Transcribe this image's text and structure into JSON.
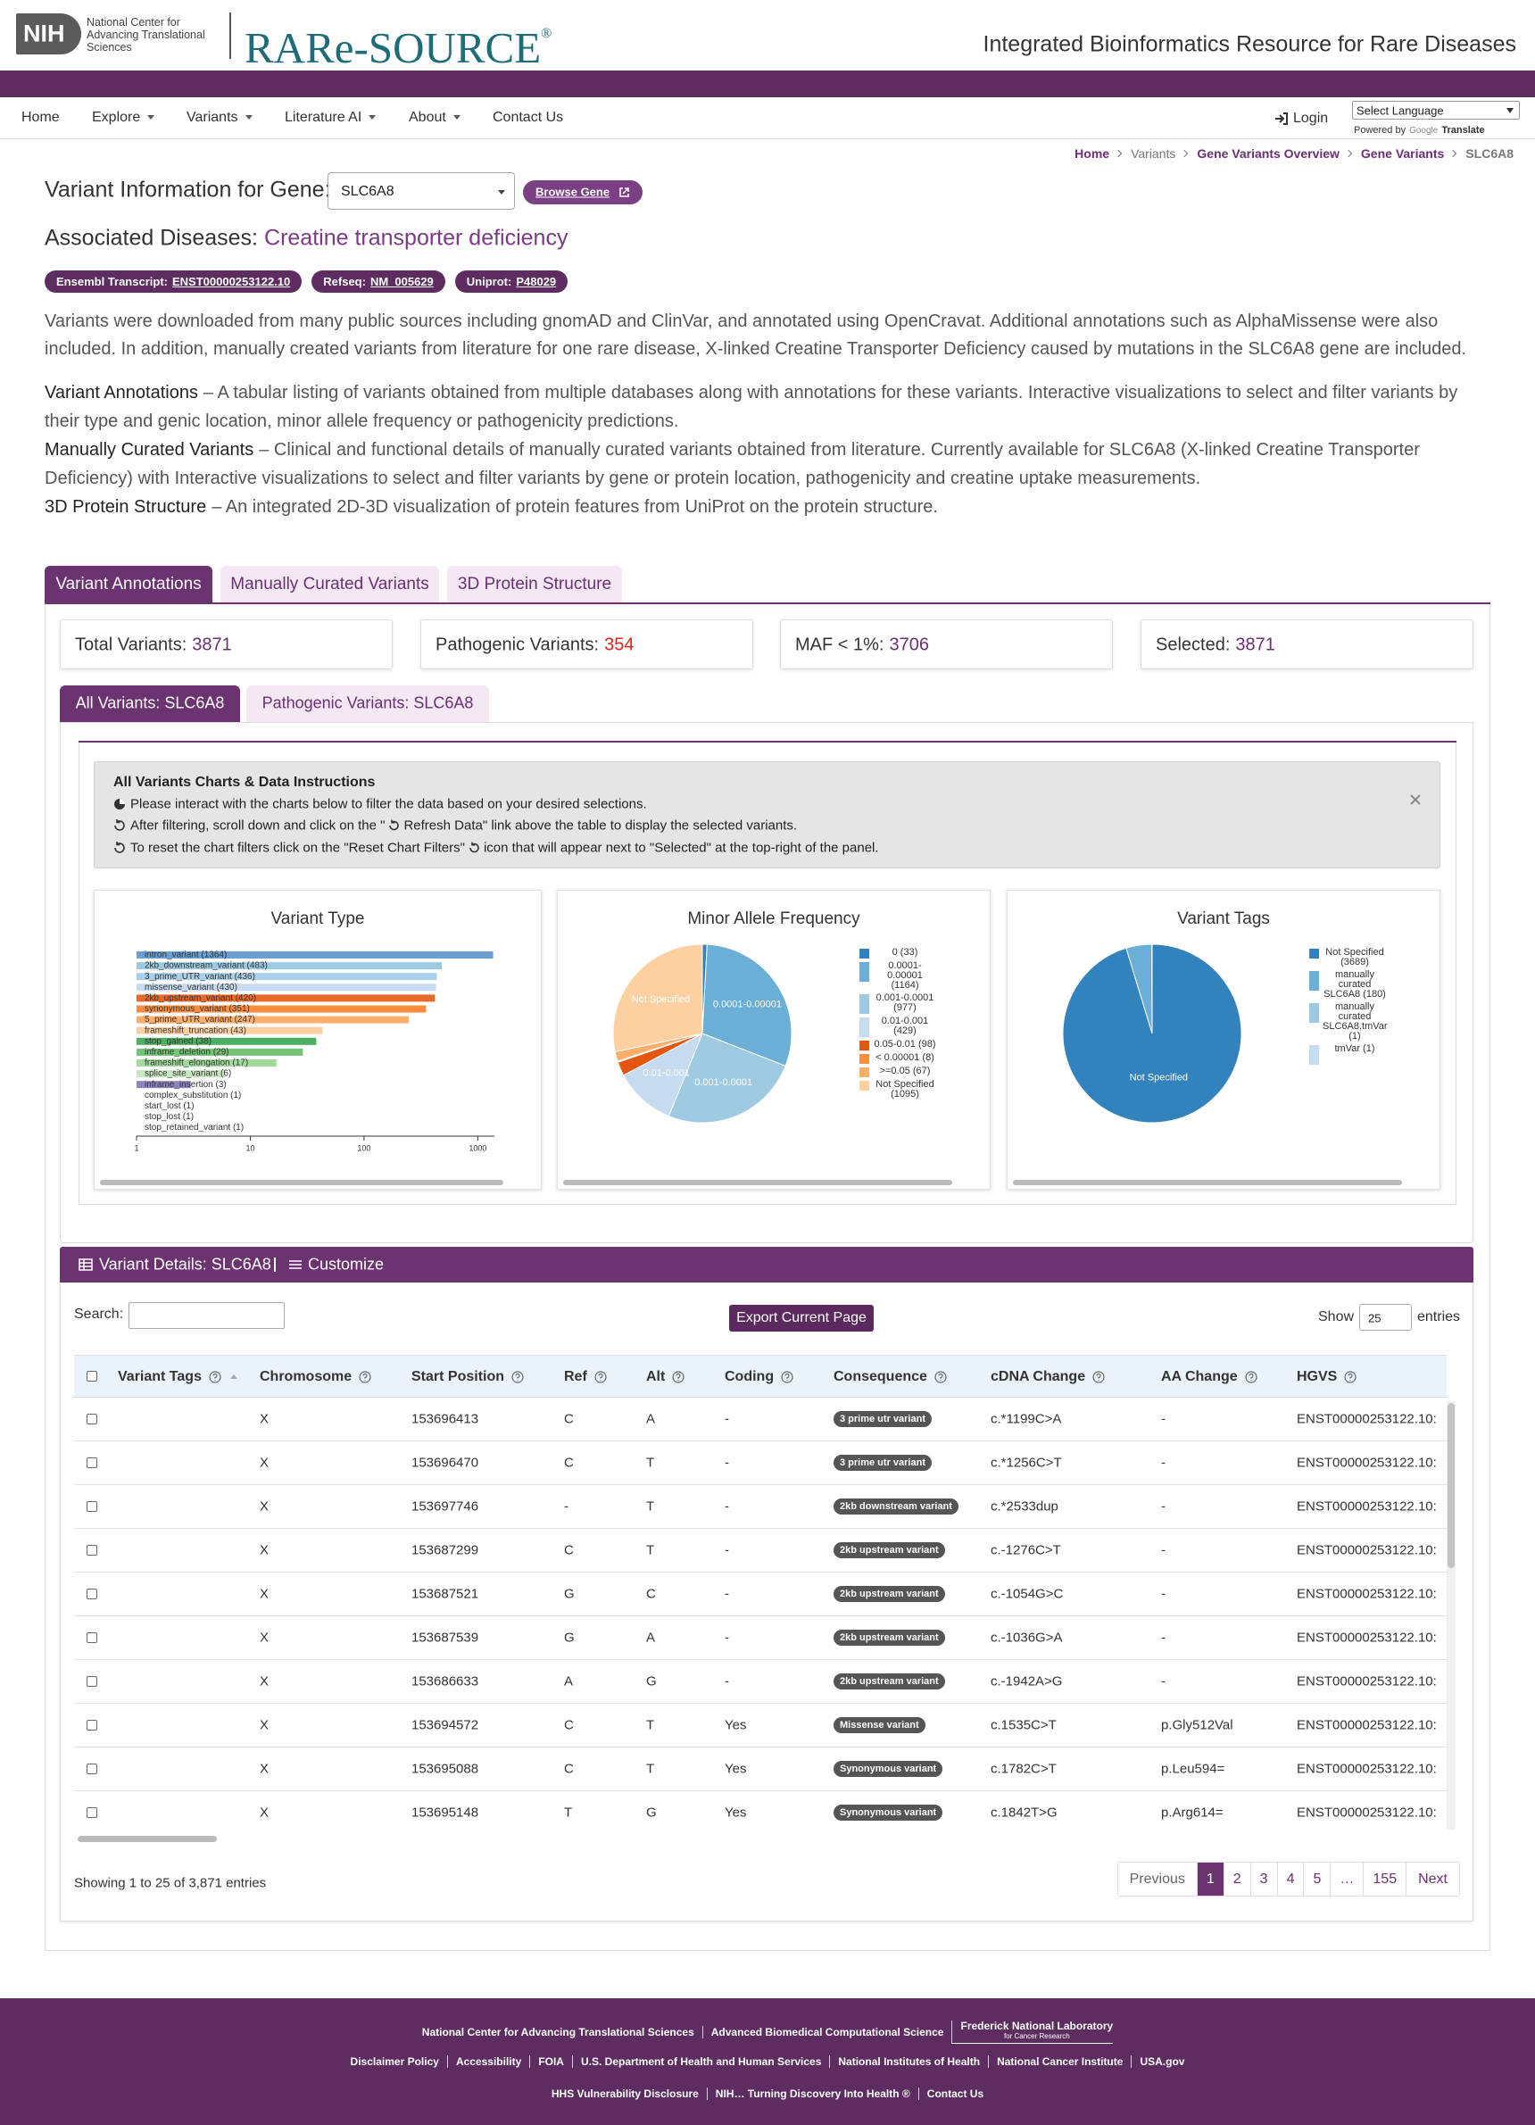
{
  "header": {
    "nih": "NIH",
    "org": "National Center for Advancing Translational Sciences",
    "brand": "RARe-SOURCE",
    "registered": "®",
    "tagline": "Integrated Bioinformatics Resource for Rare Diseases"
  },
  "nav": {
    "items": [
      "Home",
      "Explore",
      "Variants",
      "Literature AI",
      "About",
      "Contact Us"
    ],
    "login": "Login",
    "language": "Select Language",
    "powered_by": "Powered by",
    "google": "Google",
    "translate": "Translate"
  },
  "breadcrumb": [
    "Home",
    "Variants",
    "Gene Variants Overview",
    "Gene Variants",
    "SLC6A8"
  ],
  "gene": {
    "label": "Variant Information for Gene:",
    "value": "SLC6A8",
    "browse": "Browse Gene"
  },
  "diseases": {
    "label": "Associated Diseases:",
    "value": "Creatine transporter deficiency"
  },
  "badges": [
    {
      "label": "Ensembl Transcript:",
      "value": "ENST00000253122.10"
    },
    {
      "label": "Refseq:",
      "value": "NM_005629"
    },
    {
      "label": "Uniprot:",
      "value": "P48029"
    }
  ],
  "intro": "Variants were downloaded from many public sources including gnomAD and ClinVar, and annotated using OpenCravat. Additional annotations such as AlphaMissense were also included. In addition, manually created variants from literature for one rare disease, X-linked Creatine Transporter Deficiency caused by mutations in the SLC6A8 gene are included.",
  "descriptions": [
    {
      "term": "Variant Annotations",
      "text": "– A tabular listing of variants obtained from multiple databases along with annotations for these variants. Interactive visualizations to select and filter variants by their type and genic location, minor allele frequency or pathogenicity predictions."
    },
    {
      "term": "Manually Curated Variants",
      "text": "– Clinical and functional details of manually curated variants obtained from literature. Currently available for SLC6A8 (X-linked Creatine Transporter Deficiency) with Interactive visualizations to select and filter variants by gene or protein location, pathogenicity and creatine uptake measurements."
    },
    {
      "term": "3D Protein Structure",
      "text": "– An integrated 2D-3D visualization of protein features from UniProt on the protein structure."
    }
  ],
  "tabs": [
    "Variant Annotations",
    "Manually Curated Variants",
    "3D Protein Structure"
  ],
  "stats": [
    {
      "label": "Total Variants:",
      "value": 3871
    },
    {
      "label": "Pathogenic Variants:",
      "value": 354
    },
    {
      "label": "MAF < 1%:",
      "value": 3706
    },
    {
      "label": "Selected:",
      "value": 3871
    }
  ],
  "subtabs": [
    "All Variants: SLC6A8",
    "Pathogenic Variants: SLC6A8"
  ],
  "instructions": {
    "title": "All Variants Charts & Data Instructions",
    "lines": [
      [
        "Please interact with the charts below to filter the data based on your desired selections."
      ],
      [
        "After filtering, scroll down and click on the \"",
        "Refresh Data\" link above the table to display the selected variants."
      ],
      [
        "To reset the chart filters click on the \"Reset Chart Filters\"",
        "icon that will appear next to \"Selected\" at the top-right of the panel."
      ]
    ]
  },
  "chart_data": [
    {
      "type": "bar",
      "title": "Variant Type",
      "categories": [
        "intron_variant (1364)",
        "2kb_downstream_variant (483)",
        "3_prime_UTR_variant (436)",
        "missense_variant (430)",
        "2kb_upstream_variant (420)",
        "synonymous_variant (351)",
        "5_prime_UTR_variant (247)",
        "frameshift_truncation (43)",
        "stop_gained (38)",
        "inframe_deletion (29)",
        "frameshift_elongation (17)",
        "splice_site_variant (6)",
        "inframe_insertion (3)",
        "complex_substitution (1)",
        "start_lost (1)",
        "stop_lost (1)",
        "stop_retained_variant (1)"
      ],
      "values": [
        1364,
        483,
        436,
        430,
        420,
        351,
        247,
        43,
        38,
        29,
        17,
        6,
        3,
        1,
        1,
        1,
        1
      ],
      "colors": [
        "#6a9fcf",
        "#9ecae1",
        "#a9d0e8",
        "#c6dbef",
        "#e8692a",
        "#fd8d3c",
        "#fdae6b",
        "#fdd0a2",
        "#4daf62",
        "#74c476",
        "#a1d99b",
        "#c7e9c0",
        "#8c86c0",
        "#9e9ac8",
        "#bcbddc",
        "#dadaeb",
        "#dadaeb"
      ],
      "xlim": [
        1,
        1400
      ],
      "xticks": [
        1,
        10,
        100,
        1000
      ],
      "log_x": true
    },
    {
      "type": "pie",
      "title": "Minor Allele Frequency",
      "categories": [
        "0 (33)",
        "0.0001-0.00001 (1164)",
        "0.001-0.0001 (977)",
        "0.01-0.001 (429)",
        "0.05-0.01 (98)",
        "< 0.00001 (8)",
        ">=0.05 (67)",
        "Not Specified (1095)"
      ],
      "values": [
        33,
        1164,
        977,
        429,
        98,
        8,
        67,
        1095
      ],
      "slice_labels": [
        null,
        "0.0001-0.00001",
        "0.001-0.0001",
        "0.01-0.001",
        null,
        null,
        null,
        "Not Specified"
      ],
      "colors": [
        "#3182bd",
        "#6baed6",
        "#9ecae1",
        "#c6dbef",
        "#e6550d",
        "#fd8d3c",
        "#fdae6b",
        "#fdd0a2"
      ]
    },
    {
      "type": "pie",
      "title": "Variant Tags",
      "categories": [
        "Not Specified (3689)",
        "manually curated SLC6A8 (180)",
        "manually curated SLC6A8,tmVar (1)",
        "tmVar (1)"
      ],
      "values": [
        3689,
        180,
        1,
        1
      ],
      "slice_labels": [
        "Not Specified",
        null,
        null,
        null
      ],
      "colors": [
        "#3182bd",
        "#6baed6",
        "#9ecae1",
        "#c6dbef"
      ]
    }
  ],
  "details": {
    "title": "Variant Details: SLC6A8",
    "customize": "Customize",
    "search": "Search:",
    "export": "Export Current Page",
    "show": "Show",
    "page_size": 25,
    "entries": "entries"
  },
  "table": {
    "columns": [
      "Variant Tags",
      "Chromosome",
      "Start Position",
      "Ref",
      "Alt",
      "Coding",
      "Consequence",
      "cDNA Change",
      "AA Change",
      "HGVS"
    ],
    "rows": [
      [
        "X",
        153696413,
        "C",
        "A",
        "-",
        "3 prime utr variant",
        "c.*1199C>A",
        "-",
        "ENST00000253122.10:"
      ],
      [
        "X",
        153696470,
        "C",
        "T",
        "-",
        "3 prime utr variant",
        "c.*1256C>T",
        "-",
        "ENST00000253122.10:"
      ],
      [
        "X",
        153697746,
        "-",
        "T",
        "-",
        "2kb downstream variant",
        "c.*2533dup",
        "-",
        "ENST00000253122.10:"
      ],
      [
        "X",
        153687299,
        "C",
        "T",
        "-",
        "2kb upstream variant",
        "c.-1276C>T",
        "-",
        "ENST00000253122.10:"
      ],
      [
        "X",
        153687521,
        "G",
        "C",
        "-",
        "2kb upstream variant",
        "c.-1054G>C",
        "-",
        "ENST00000253122.10:"
      ],
      [
        "X",
        153687539,
        "G",
        "A",
        "-",
        "2kb upstream variant",
        "c.-1036G>A",
        "-",
        "ENST00000253122.10:"
      ],
      [
        "X",
        153686633,
        "A",
        "G",
        "-",
        "2kb upstream variant",
        "c.-1942A>G",
        "-",
        "ENST00000253122.10:"
      ],
      [
        "X",
        153694572,
        "C",
        "T",
        "Yes",
        "Missense variant",
        "c.1535C>T",
        "p.Gly512Val",
        "ENST00000253122.10:"
      ],
      [
        "X",
        153695088,
        "C",
        "T",
        "Yes",
        "Synonymous variant",
        "c.1782C>T",
        "p.Leu594=",
        "ENST00000253122.10:"
      ],
      [
        "X",
        153695148,
        "T",
        "G",
        "Yes",
        "Synonymous variant",
        "c.1842T>G",
        "p.Arg614=",
        "ENST00000253122.10:"
      ]
    ]
  },
  "table_info": "Showing 1 to 25 of 3,871 entries",
  "pagination": [
    "Previous",
    "1",
    "2",
    "3",
    "4",
    "5",
    "…",
    "155",
    "Next"
  ],
  "footer": {
    "row1": [
      "National Center for Advancing Translational Sciences",
      "Advanced Biomedical Computational Science"
    ],
    "fnl": "Frederick National Laboratory",
    "fnl_sub": "for Cancer Research",
    "row2": [
      "Disclaimer Policy",
      "Accessibility",
      "FOIA",
      "U.S. Department of Health and Human Services",
      "National Institutes of Health",
      "National Cancer Institute",
      "USA.gov"
    ],
    "row3": [
      "HHS Vulnerability Disclosure",
      "NIH… Turning Discovery Into Health ®",
      "Contact Us"
    ]
  }
}
